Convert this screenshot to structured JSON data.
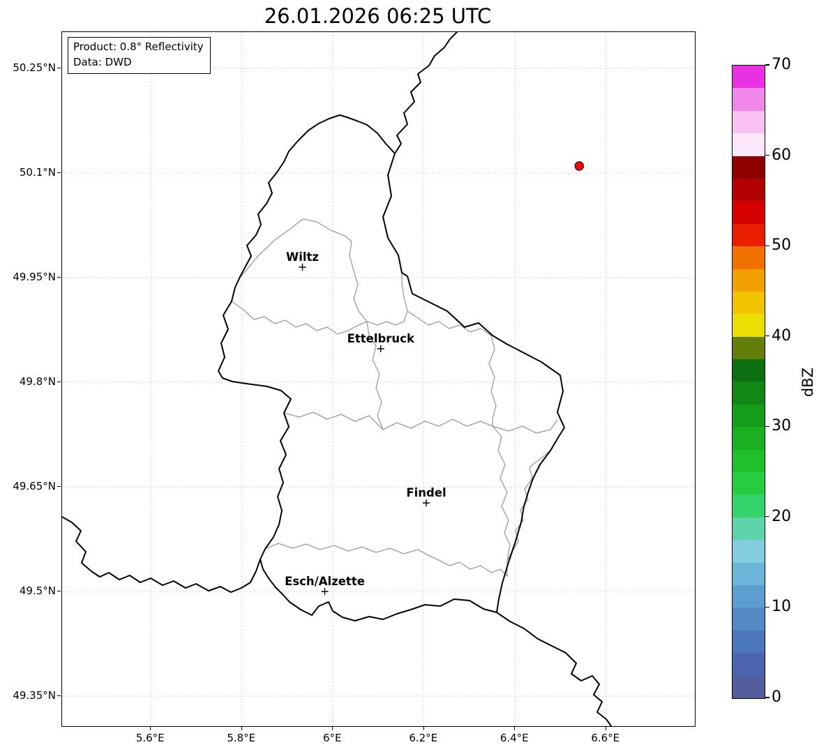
{
  "title": "26.01.2026 06:25 UTC",
  "info_box": {
    "product": "Product: 0.8° Reflectivity",
    "data_source": "Data: DWD"
  },
  "axes": {
    "x_ticks": [
      {
        "lon": 5.6,
        "label": "5.6°E"
      },
      {
        "lon": 5.8,
        "label": "5.8°E"
      },
      {
        "lon": 6.0,
        "label": "6°E"
      },
      {
        "lon": 6.2,
        "label": "6.2°E"
      },
      {
        "lon": 6.4,
        "label": "6.4°E"
      },
      {
        "lon": 6.6,
        "label": "6.6°E"
      }
    ],
    "y_ticks": [
      {
        "lat": 50.25,
        "label": "50.25°N"
      },
      {
        "lat": 50.1,
        "label": "50.1°N"
      },
      {
        "lat": 49.95,
        "label": "49.95°N"
      },
      {
        "lat": 49.8,
        "label": "49.8°N"
      },
      {
        "lat": 49.65,
        "label": "49.65°N"
      },
      {
        "lat": 49.5,
        "label": "49.5°N"
      },
      {
        "lat": 49.35,
        "label": "49.35°N"
      }
    ]
  },
  "cities": [
    {
      "name": "Wiltz",
      "lon": 5.933,
      "lat": 49.965
    },
    {
      "name": "Ettelbruck",
      "lon": 6.105,
      "lat": 49.848
    },
    {
      "name": "Findel",
      "lon": 6.205,
      "lat": 49.627
    },
    {
      "name": "Esch/Alzette",
      "lon": 5.982,
      "lat": 49.5
    }
  ],
  "radar_echoes": [
    {
      "lon": 6.541,
      "lat": 50.11,
      "color": "#f50400",
      "edge_color": "#000000"
    }
  ],
  "colorbar": {
    "label": "dBZ",
    "vmin": 0,
    "vmax": 70,
    "ticks": [
      0,
      10,
      20,
      30,
      40,
      50,
      60,
      70
    ],
    "segments_bottom_to_top": [
      "#535e9e",
      "#4b64ae",
      "#4b76bc",
      "#538ac6",
      "#5c9ed0",
      "#6cb5d8",
      "#83cdde",
      "#5ed2ab",
      "#35d36b",
      "#27cc41",
      "#20c02c",
      "#1bb021",
      "#169c1b",
      "#118715",
      "#0d7010",
      "#637f0a",
      "#eadf00",
      "#f2c400",
      "#f2a000",
      "#f07000",
      "#ea1e00",
      "#d60000",
      "#b30000",
      "#8c0000",
      "#fce8fa",
      "#f8c0f3",
      "#f187e9",
      "#e930e2"
    ]
  }
}
